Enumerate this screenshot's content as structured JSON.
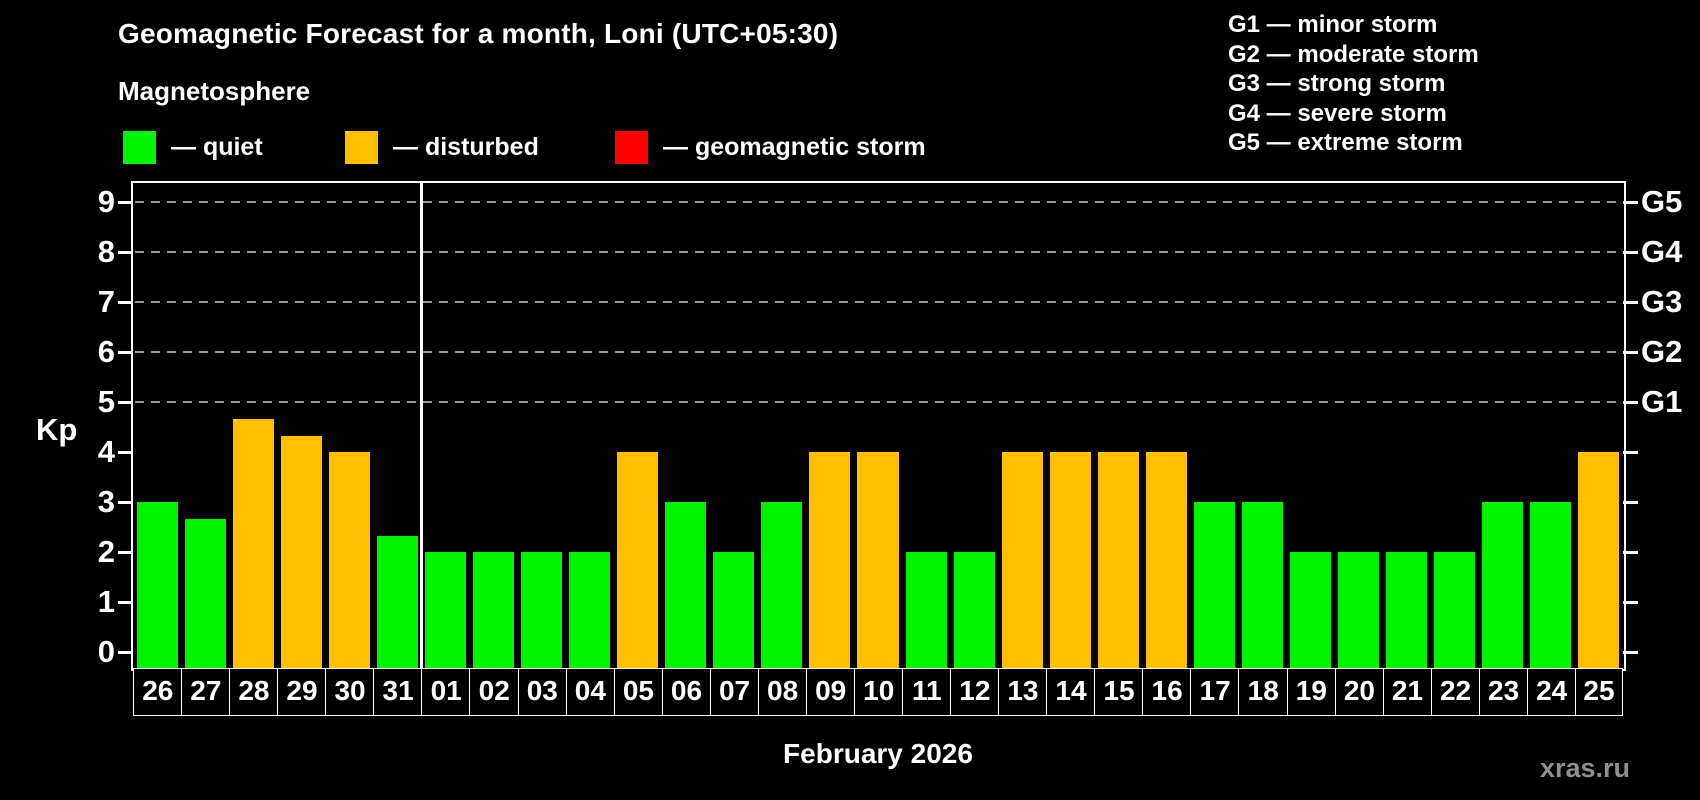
{
  "header": {
    "title": "Geomagnetic Forecast for a month, Loni (UTC+05:30)",
    "subtitle": "Magnetosphere"
  },
  "legend": {
    "items": [
      {
        "key": "quiet",
        "label": "— quiet",
        "color": "#00f400"
      },
      {
        "key": "disturbed",
        "label": "— disturbed",
        "color": "#ffc000"
      },
      {
        "key": "storm",
        "label": "— geomagnetic storm",
        "color": "#ff0000"
      }
    ]
  },
  "g_scale_legend": {
    "lines": [
      "G1 — minor storm",
      "G2 — moderate storm",
      "G3 — strong storm",
      "G4 — severe storm",
      "G5 — extreme storm"
    ]
  },
  "axes": {
    "y_label": "Kp",
    "y_ticks": [
      "0",
      "1",
      "2",
      "3",
      "4",
      "5",
      "6",
      "7",
      "8",
      "9"
    ],
    "right_labels": [
      {
        "text": "G1",
        "kp": 5
      },
      {
        "text": "G2",
        "kp": 6
      },
      {
        "text": "G3",
        "kp": 7
      },
      {
        "text": "G4",
        "kp": 8
      },
      {
        "text": "G5",
        "kp": 9
      }
    ],
    "x_title": "February 2026"
  },
  "watermark": "xras.ru",
  "colors": {
    "background": "#000000",
    "text": "#ffffff",
    "quiet": "#00f400",
    "disturbed": "#ffc000",
    "storm": "#ff0000",
    "gridline": "#9a9a9a",
    "axis": "#ffffff",
    "watermark": "#8f8f8f"
  },
  "chart_data": {
    "type": "bar",
    "title": "Geomagnetic Forecast for a month, Loni (UTC+05:30)",
    "ylabel": "Kp",
    "xlabel": "February 2026",
    "ylim": [
      0,
      9
    ],
    "yticks": [
      0,
      1,
      2,
      3,
      4,
      5,
      6,
      7,
      8,
      9
    ],
    "gridlines_at_kp": [
      5,
      6,
      7,
      8,
      9
    ],
    "right_axis_g_levels": {
      "G1": 5,
      "G2": 6,
      "G3": 7,
      "G4": 8,
      "G5": 9
    },
    "categories": [
      "26",
      "27",
      "28",
      "29",
      "30",
      "31",
      "01",
      "02",
      "03",
      "04",
      "05",
      "06",
      "07",
      "08",
      "09",
      "10",
      "11",
      "12",
      "13",
      "14",
      "15",
      "16",
      "17",
      "18",
      "19",
      "20",
      "21",
      "22",
      "23",
      "24",
      "25"
    ],
    "series": [
      {
        "name": "Kp forecast",
        "values": [
          3,
          2.67,
          4.67,
          4.33,
          4,
          2.33,
          2,
          2,
          2,
          2,
          4,
          3,
          2,
          3,
          4,
          4,
          2,
          2,
          4,
          4,
          4,
          4,
          3,
          3,
          2,
          2,
          2,
          2,
          3,
          3,
          4
        ]
      }
    ],
    "bar_status": [
      "quiet",
      "quiet",
      "disturbed",
      "disturbed",
      "disturbed",
      "quiet",
      "quiet",
      "quiet",
      "quiet",
      "quiet",
      "disturbed",
      "quiet",
      "quiet",
      "quiet",
      "disturbed",
      "disturbed",
      "quiet",
      "quiet",
      "disturbed",
      "disturbed",
      "disturbed",
      "disturbed",
      "quiet",
      "quiet",
      "quiet",
      "quiet",
      "quiet",
      "quiet",
      "quiet",
      "quiet",
      "disturbed"
    ],
    "month_separator_after_index": 5,
    "legend_position": "top-left",
    "grid": "dashed horizontal lines at G-storm levels only"
  }
}
